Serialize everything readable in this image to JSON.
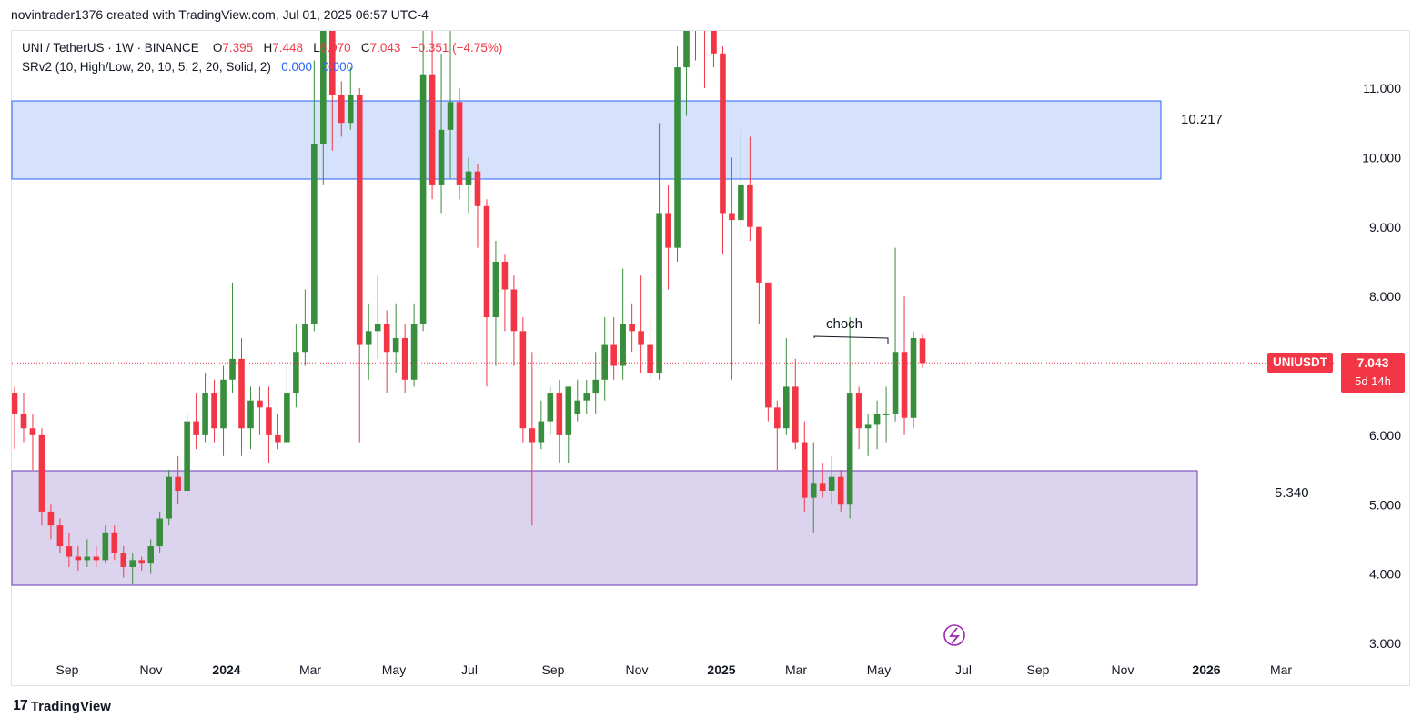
{
  "header": {
    "text": "novintrader1376 created with TradingView.com, Jul 01, 2025 06:57 UTC-4"
  },
  "legend": {
    "symbol": "UNI / TetherUS · 1W · BINANCE",
    "o_label": "O",
    "o_value": "7.395",
    "h_label": "H",
    "h_value": "7.448",
    "l_label": "L",
    "l_value": "6.970",
    "c_label": "C",
    "c_value": "7.043",
    "change": "−0.351 (−4.75%)",
    "indicator": "SRv2 (10, High/Low, 20, 10, 5, 2, 20, Solid, 2)",
    "ind_val1": "0.000",
    "ind_val2": "0.000"
  },
  "price_axis": {
    "labels": [
      "11.000",
      "10.000",
      "9.000",
      "8.000",
      "6.000",
      "5.000",
      "4.000",
      "3.000"
    ],
    "values": [
      11,
      10,
      9,
      8,
      6,
      5,
      4,
      3
    ]
  },
  "time_axis": {
    "labels": [
      "Sep",
      "Nov",
      "2024",
      "Mar",
      "May",
      "Jul",
      "Sep",
      "Nov",
      "2025",
      "Mar",
      "May",
      "Jul",
      "Sep",
      "Nov",
      "2026",
      "Mar"
    ],
    "bold": [
      false,
      false,
      true,
      false,
      false,
      false,
      false,
      false,
      true,
      false,
      false,
      false,
      false,
      false,
      true,
      false
    ]
  },
  "zones": {
    "resistance_label": "10.217",
    "support_label": "5.340",
    "resistance_color": "#d6e1fc",
    "support_color": "#dcd4ee"
  },
  "annotation": {
    "text": "choch"
  },
  "current_price": {
    "ticker": "UNIUSDT",
    "price": "7.043",
    "countdown": "5d 14h"
  },
  "footer": {
    "logo": "17",
    "brand": "TradingView"
  },
  "colors": {
    "up": "#388e3c",
    "down": "#f23645",
    "accent": "#2962ff"
  },
  "chart_data": {
    "type": "candlestick",
    "timeframe": "1W",
    "ylim": [
      2.7,
      11.8
    ],
    "candles": [
      [
        6.6,
        6.3,
        6.7,
        5.8
      ],
      [
        6.3,
        6.1,
        6.6,
        5.9
      ],
      [
        6.1,
        6.0,
        6.3,
        5.5
      ],
      [
        6.0,
        4.9,
        6.1,
        4.7
      ],
      [
        4.9,
        4.7,
        5.0,
        4.5
      ],
      [
        4.7,
        4.4,
        4.8,
        4.3
      ],
      [
        4.4,
        4.25,
        4.6,
        4.1
      ],
      [
        4.25,
        4.2,
        4.4,
        4.05
      ],
      [
        4.2,
        4.25,
        4.5,
        4.1
      ],
      [
        4.25,
        4.2,
        4.4,
        4.1
      ],
      [
        4.2,
        4.6,
        4.7,
        4.15
      ],
      [
        4.6,
        4.3,
        4.7,
        4.2
      ],
      [
        4.3,
        4.1,
        4.4,
        3.95
      ],
      [
        4.1,
        4.2,
        4.3,
        3.85
      ],
      [
        4.2,
        4.15,
        4.25,
        4.05
      ],
      [
        4.15,
        4.4,
        4.5,
        4.0
      ],
      [
        4.4,
        4.8,
        4.9,
        4.3
      ],
      [
        4.8,
        5.4,
        5.5,
        4.7
      ],
      [
        5.4,
        5.2,
        5.7,
        5.0
      ],
      [
        5.2,
        6.2,
        6.3,
        5.1
      ],
      [
        6.2,
        6.0,
        6.6,
        5.8
      ],
      [
        6.0,
        6.6,
        6.9,
        5.9
      ],
      [
        6.6,
        6.1,
        6.8,
        5.9
      ],
      [
        6.1,
        6.8,
        7.0,
        5.7
      ],
      [
        6.8,
        7.1,
        8.2,
        6.6
      ],
      [
        7.1,
        6.1,
        7.4,
        5.7
      ],
      [
        6.1,
        6.5,
        6.7,
        5.8
      ],
      [
        6.5,
        6.4,
        6.7,
        6.0
      ],
      [
        6.4,
        6.0,
        6.7,
        5.6
      ],
      [
        6.0,
        5.9,
        6.3,
        5.8
      ],
      [
        5.9,
        6.6,
        7.0,
        5.9
      ],
      [
        6.6,
        7.2,
        7.6,
        6.4
      ],
      [
        7.2,
        7.6,
        8.1,
        7.0
      ],
      [
        7.6,
        10.2,
        11.4,
        7.5
      ],
      [
        10.2,
        12.5,
        13.2,
        9.6
      ],
      [
        12.0,
        10.9,
        12.0,
        10.1
      ],
      [
        10.9,
        10.5,
        11.1,
        10.3
      ],
      [
        10.5,
        10.9,
        11.3,
        10.4
      ],
      [
        10.9,
        7.3,
        11.0,
        5.9
      ],
      [
        7.3,
        7.5,
        7.9,
        6.8
      ],
      [
        7.5,
        7.6,
        8.3,
        7.1
      ],
      [
        7.6,
        7.2,
        7.8,
        6.6
      ],
      [
        7.2,
        7.4,
        7.9,
        6.9
      ],
      [
        7.4,
        6.8,
        7.6,
        6.6
      ],
      [
        6.8,
        7.6,
        7.9,
        6.7
      ],
      [
        7.6,
        11.2,
        12.4,
        7.5
      ],
      [
        11.2,
        9.6,
        12.0,
        9.4
      ],
      [
        9.6,
        10.4,
        11.5,
        9.2
      ],
      [
        10.4,
        10.8,
        12.0,
        9.7
      ],
      [
        10.8,
        9.6,
        11.0,
        9.4
      ],
      [
        9.6,
        9.8,
        10.0,
        9.2
      ],
      [
        9.8,
        9.3,
        9.9,
        8.7
      ],
      [
        9.3,
        7.7,
        9.4,
        6.7
      ],
      [
        7.7,
        8.5,
        8.8,
        7.0
      ],
      [
        8.5,
        8.1,
        8.6,
        7.5
      ],
      [
        8.1,
        7.5,
        8.3,
        7.0
      ],
      [
        7.5,
        6.1,
        7.7,
        5.9
      ],
      [
        6.1,
        5.9,
        7.2,
        4.7
      ],
      [
        5.9,
        6.2,
        6.5,
        5.8
      ],
      [
        6.2,
        6.6,
        6.7,
        6.0
      ],
      [
        6.6,
        6.0,
        6.8,
        5.6
      ],
      [
        6.0,
        6.7,
        6.7,
        5.6
      ],
      [
        6.3,
        6.5,
        6.8,
        6.2
      ],
      [
        6.5,
        6.6,
        6.8,
        6.3
      ],
      [
        6.6,
        6.8,
        7.2,
        6.3
      ],
      [
        6.8,
        7.3,
        7.7,
        6.5
      ],
      [
        7.3,
        7.0,
        7.7,
        6.8
      ],
      [
        7.0,
        7.6,
        8.4,
        6.8
      ],
      [
        7.6,
        7.5,
        7.9,
        7.2
      ],
      [
        7.5,
        7.3,
        8.3,
        6.9
      ],
      [
        7.3,
        6.9,
        7.7,
        6.8
      ],
      [
        6.9,
        9.2,
        10.5,
        6.8
      ],
      [
        9.2,
        8.7,
        9.6,
        8.1
      ],
      [
        8.7,
        11.3,
        11.6,
        8.5
      ],
      [
        11.3,
        12.2,
        12.9,
        10.6
      ],
      [
        12.0,
        12.5,
        12.9,
        11.4
      ],
      [
        12.5,
        11.9,
        12.6,
        11.0
      ],
      [
        11.9,
        11.5,
        12.2,
        11.3
      ],
      [
        11.5,
        9.2,
        11.6,
        8.6
      ],
      [
        9.2,
        9.1,
        10.0,
        6.8
      ],
      [
        9.1,
        9.6,
        10.4,
        8.9
      ],
      [
        9.6,
        9.0,
        10.3,
        8.8
      ],
      [
        9.0,
        8.2,
        9.0,
        7.6
      ],
      [
        8.2,
        6.4,
        8.2,
        6.2
      ],
      [
        6.4,
        6.1,
        6.5,
        5.5
      ],
      [
        6.1,
        6.7,
        7.4,
        6.0
      ],
      [
        6.7,
        5.9,
        7.1,
        5.8
      ],
      [
        5.9,
        5.1,
        6.2,
        4.9
      ],
      [
        5.1,
        5.3,
        5.9,
        4.6
      ],
      [
        5.3,
        5.2,
        5.6,
        5.1
      ],
      [
        5.2,
        5.4,
        5.7,
        5.0
      ],
      [
        5.4,
        5.0,
        5.5,
        4.9
      ],
      [
        5.0,
        6.6,
        7.7,
        4.8
      ],
      [
        6.6,
        6.1,
        6.7,
        5.8
      ],
      [
        6.1,
        6.15,
        6.3,
        5.7
      ],
      [
        6.15,
        6.3,
        6.5,
        5.8
      ],
      [
        6.3,
        6.3,
        6.7,
        5.9
      ],
      [
        6.3,
        7.2,
        8.7,
        6.2
      ],
      [
        7.2,
        6.25,
        8.0,
        6.0
      ],
      [
        6.25,
        7.4,
        7.5,
        6.1
      ],
      [
        7.395,
        7.043,
        7.448,
        6.97
      ]
    ]
  }
}
